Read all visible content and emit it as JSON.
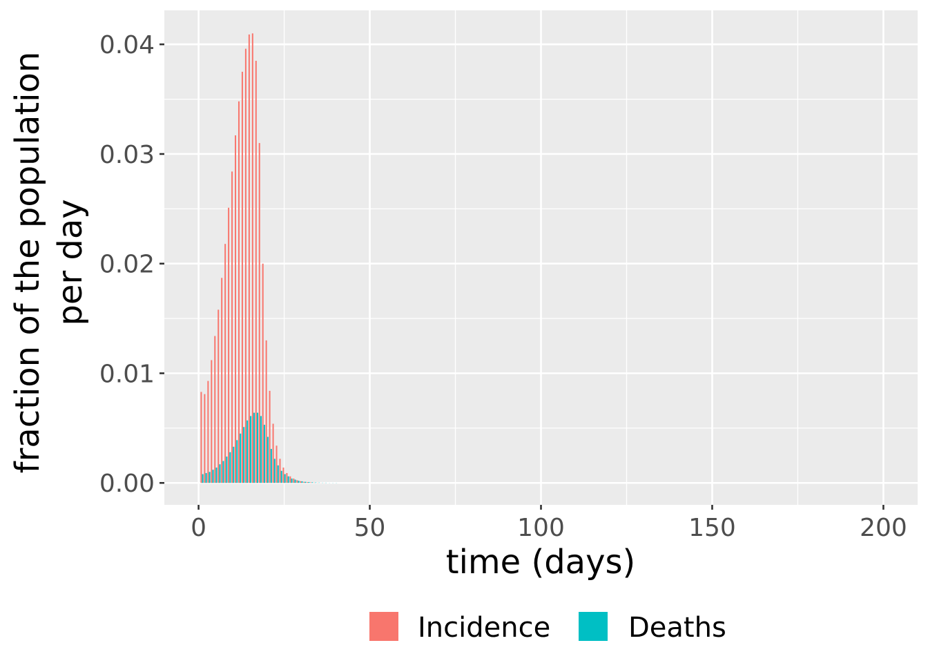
{
  "chart_data": {
    "type": "bar",
    "title": "",
    "xlabel": "time (days)",
    "ylabel_lines": [
      "fraction of the population",
      "per day"
    ],
    "xlim": [
      -10,
      210
    ],
    "ylim": [
      -0.002,
      0.0431
    ],
    "x_ticks": [
      0,
      50,
      100,
      150,
      200
    ],
    "x_tick_labels": [
      "0",
      "50",
      "100",
      "150",
      "200"
    ],
    "y_ticks": [
      0,
      0.01,
      0.02,
      0.03,
      0.04
    ],
    "y_tick_labels": [
      "0.00",
      "0.01",
      "0.02",
      "0.03",
      "0.04"
    ],
    "grid": true,
    "legend_position": "bottom",
    "series": [
      {
        "name": "Incidence",
        "color": "#F8766D",
        "x": [
          1,
          2,
          3,
          4,
          5,
          6,
          7,
          8,
          9,
          10,
          11,
          12,
          13,
          14,
          15,
          16,
          17,
          18,
          19,
          20,
          21,
          22,
          23,
          24,
          25,
          26,
          27,
          28,
          29,
          30,
          31,
          32,
          33,
          34,
          35,
          36,
          37,
          38,
          39,
          40,
          41,
          42,
          43,
          44,
          45,
          46,
          47,
          48,
          49,
          50
        ],
        "values": [
          0.0083,
          0.0081,
          0.0093,
          0.0112,
          0.0134,
          0.0158,
          0.0187,
          0.0218,
          0.0251,
          0.0284,
          0.0317,
          0.0348,
          0.0375,
          0.0396,
          0.0409,
          0.041,
          0.0385,
          0.031,
          0.02,
          0.013,
          0.0084,
          0.0054,
          0.0034,
          0.0022,
          0.0014,
          0.0009,
          0.0006,
          0.0004,
          0.00025,
          0.00016,
          0.0001,
          7e-05,
          5e-05,
          3e-05,
          2e-05,
          1e-05,
          1e-05,
          0.0,
          0.0,
          0.0,
          0.0,
          0.0,
          0.0,
          0.0,
          0.0,
          0.0,
          0.0,
          0.0,
          0.0,
          0.0
        ]
      },
      {
        "name": "Deaths",
        "color": "#00BFC4",
        "x": [
          1,
          2,
          3,
          4,
          5,
          6,
          7,
          8,
          9,
          10,
          11,
          12,
          13,
          14,
          15,
          16,
          17,
          18,
          19,
          20,
          21,
          22,
          23,
          24,
          25,
          26,
          27,
          28,
          29,
          30,
          31,
          32,
          33,
          34,
          35,
          36,
          37,
          38,
          39,
          40,
          41,
          42,
          43,
          44,
          45,
          46,
          47,
          48,
          49,
          50
        ],
        "values": [
          0.0008,
          0.0009,
          0.001,
          0.0012,
          0.0014,
          0.0017,
          0.002,
          0.0024,
          0.0028,
          0.0033,
          0.0039,
          0.0045,
          0.0051,
          0.0057,
          0.0061,
          0.0064,
          0.0064,
          0.0061,
          0.0053,
          0.0042,
          0.0031,
          0.0022,
          0.0016,
          0.0011,
          0.0008,
          0.0006,
          0.0004,
          0.0003,
          0.0002,
          0.00015,
          0.0001,
          8e-05,
          6e-05,
          4e-05,
          3e-05,
          2e-05,
          2e-05,
          1e-05,
          1e-05,
          1e-05,
          0.0,
          0.0,
          0.0,
          0.0,
          0.0,
          0.0,
          0.0,
          0.0,
          0.0,
          0.0
        ]
      }
    ]
  }
}
